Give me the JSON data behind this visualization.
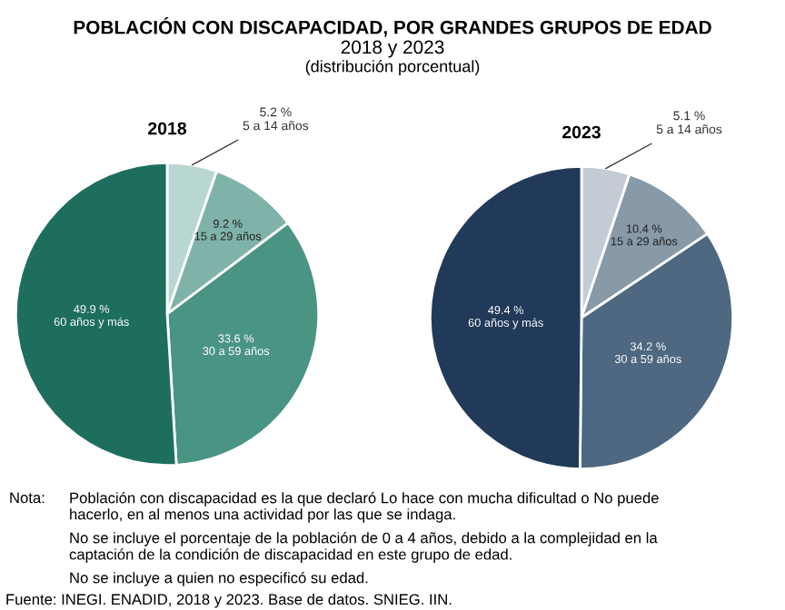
{
  "chart_data": [
    {
      "type": "pie",
      "title": "2018",
      "categories": [
        "5 a 14 años",
        "15 a 29 años",
        "30 a 59 años",
        "60 años y más"
      ],
      "values": [
        5.2,
        9.2,
        33.6,
        49.9
      ],
      "value_labels": [
        "5.2 %",
        "9.2 %",
        "33.6 %",
        "49.9 %"
      ],
      "colors": [
        "#b9d7d2",
        "#7fb3a9",
        "#4a9484",
        "#1e6e5e"
      ],
      "annotations": [
        "POBLACIÓN CON DISCAPACIDAD, POR GRANDES GRUPOS DE EDAD",
        "2018 y 2023",
        "(distribución porcentual)",
        "Nota:",
        "Población con discapacidad es la que declaró Lo hace con mucha dificultad o No puede\nhacerlo, en al menos una actividad por las que se indaga.",
        "No se incluye el porcentaje de la población de 0 a 4 años, debido a la complejidad en la\ncaptación de la condición de discapacidad en este grupo de edad.",
        "No se incluye a quien no especificó su edad.",
        "Fuente: INEGI. ENADID, 2018 y 2023. Base de datos. SNIEG. IIN."
      ]
    },
    {
      "type": "pie",
      "title": "2023",
      "categories": [
        "5 a 14 años",
        "15 a 29 años",
        "30 a 59 años",
        "60 años y más"
      ],
      "values": [
        5.1,
        10.4,
        34.2,
        49.4
      ],
      "value_labels": [
        "5.1 %",
        "10.4 %",
        "34.2 %",
        "49.4 %"
      ],
      "colors": [
        "#c3ccd5",
        "#8899a8",
        "#4d6880",
        "#213a59"
      ]
    }
  ]
}
